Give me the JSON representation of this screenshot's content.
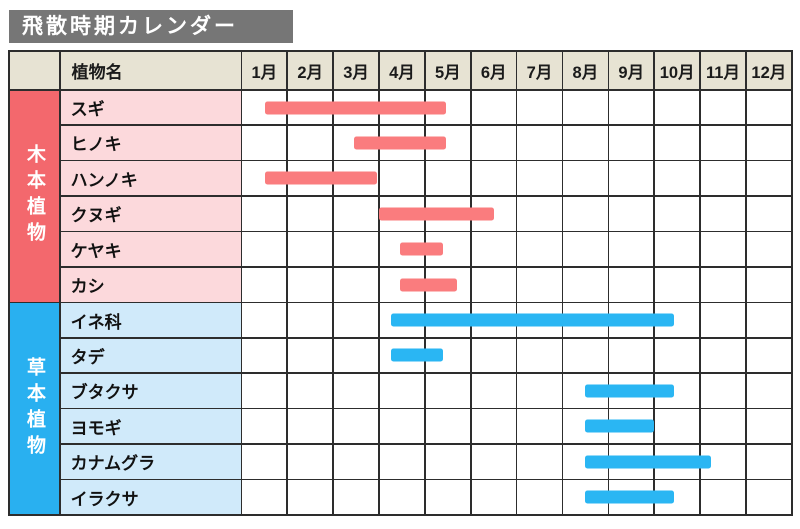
{
  "title": "飛散時期カレンダー",
  "header": {
    "plant_col_label": "植物名",
    "months": [
      "1月",
      "2月",
      "3月",
      "4月",
      "5月",
      "6月",
      "7月",
      "8月",
      "9月",
      "10月",
      "11月",
      "12月"
    ]
  },
  "colors": {
    "title_bg": "#767676",
    "title_text": "#ffffff",
    "header_bg": "#e7e3d3",
    "grid_line": "#2d2d2d",
    "woody_group_bg": "#f3686d",
    "woody_row_bg": "#fcd9dc",
    "woody_bar": "#fa7c7e",
    "herb_group_bg": "#29b0f0",
    "herb_row_bg": "#d0eafa",
    "herb_bar": "#2ab6f3"
  },
  "chart_data": {
    "type": "gantt",
    "title": "飛散時期カレンダー",
    "x_axis": {
      "unit": "month",
      "labels": [
        "1月",
        "2月",
        "3月",
        "4月",
        "5月",
        "6月",
        "7月",
        "8月",
        "9月",
        "10月",
        "11月",
        "12月"
      ],
      "range": [
        1,
        13
      ],
      "grid": true
    },
    "groups": [
      {
        "label": "木本植物",
        "plants": [
          {
            "name": "スギ",
            "start_month": 1.5,
            "end_month": 5.45
          },
          {
            "name": "ヒノキ",
            "start_month": 3.45,
            "end_month": 5.45
          },
          {
            "name": "ハンノキ",
            "start_month": 1.5,
            "end_month": 3.95
          },
          {
            "name": "クヌギ",
            "start_month": 4.0,
            "end_month": 6.5
          },
          {
            "name": "ケヤキ",
            "start_month": 4.45,
            "end_month": 5.4
          },
          {
            "name": "カシ",
            "start_month": 4.45,
            "end_month": 5.7
          }
        ]
      },
      {
        "label": "草本植物",
        "plants": [
          {
            "name": "イネ科",
            "start_month": 4.25,
            "end_month": 10.45
          },
          {
            "name": "タデ",
            "start_month": 4.25,
            "end_month": 5.4
          },
          {
            "name": "ブタクサ",
            "start_month": 8.5,
            "end_month": 10.45
          },
          {
            "name": "ヨモギ",
            "start_month": 8.5,
            "end_month": 10.0
          },
          {
            "name": "カナムグラ",
            "start_month": 8.5,
            "end_month": 11.25
          },
          {
            "name": "イラクサ",
            "start_month": 8.5,
            "end_month": 10.45
          }
        ]
      }
    ]
  }
}
